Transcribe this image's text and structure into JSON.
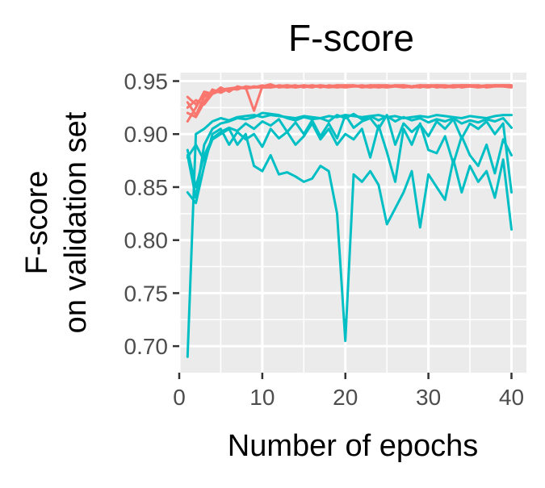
{
  "chart_data": {
    "type": "line",
    "title": "F-score",
    "xlabel": "Number of epochs",
    "ylabel_lines": [
      "F-score",
      "on validation set"
    ],
    "xlim": [
      0,
      41.8
    ],
    "ylim": [
      0.675,
      0.958
    ],
    "xticks": [
      0,
      10,
      20,
      30,
      40
    ],
    "xtick_labels": [
      "0",
      "10",
      "20",
      "30",
      "40"
    ],
    "yticks": [
      0.7,
      0.75,
      0.8,
      0.85,
      0.9,
      0.95
    ],
    "ytick_labels": [
      "0.70",
      "0.75",
      "0.80",
      "0.85",
      "0.90",
      "0.95"
    ],
    "panel_background": "#EBEBEB",
    "grid": true,
    "grid_color": "#FFFFFF",
    "legend": "none",
    "colors": {
      "red_group": "#F8766D",
      "teal_group": "#00BFC4"
    },
    "x": [
      1,
      2,
      3,
      4,
      5,
      6,
      7,
      8,
      9,
      10,
      11,
      12,
      13,
      14,
      15,
      16,
      17,
      18,
      19,
      20,
      21,
      22,
      23,
      24,
      25,
      26,
      27,
      28,
      29,
      30,
      31,
      32,
      33,
      34,
      35,
      36,
      37,
      38,
      39,
      40
    ],
    "series": [
      {
        "group": "red_group",
        "values": [
          0.93,
          0.918,
          0.935,
          0.94,
          0.942,
          0.943,
          0.944,
          0.944,
          0.922,
          0.945,
          0.946,
          0.945,
          0.946,
          0.945,
          0.946,
          0.945,
          0.946,
          0.945,
          0.946,
          0.946,
          0.946,
          0.945,
          0.946,
          0.946,
          0.945,
          0.946,
          0.946,
          0.945,
          0.946,
          0.946,
          0.946,
          0.945,
          0.946,
          0.946,
          0.946,
          0.945,
          0.946,
          0.946,
          0.946,
          0.946
        ]
      },
      {
        "group": "red_group",
        "values": [
          0.925,
          0.932,
          0.928,
          0.938,
          0.941,
          0.942,
          0.943,
          0.944,
          0.944,
          0.944,
          0.945,
          0.945,
          0.944,
          0.945,
          0.945,
          0.946,
          0.945,
          0.945,
          0.946,
          0.945,
          0.945,
          0.946,
          0.945,
          0.946,
          0.946,
          0.945,
          0.946,
          0.945,
          0.946,
          0.945,
          0.946,
          0.946,
          0.945,
          0.946,
          0.946,
          0.946,
          0.945,
          0.946,
          0.946,
          0.946
        ]
      },
      {
        "group": "red_group",
        "values": [
          0.912,
          0.925,
          0.94,
          0.938,
          0.944,
          0.94,
          0.945,
          0.943,
          0.945,
          0.944,
          0.944,
          0.946,
          0.945,
          0.944,
          0.946,
          0.945,
          0.945,
          0.944,
          0.945,
          0.946,
          0.945,
          0.945,
          0.944,
          0.945,
          0.946,
          0.945,
          0.944,
          0.945,
          0.946,
          0.945,
          0.945,
          0.944,
          0.945,
          0.946,
          0.945,
          0.945,
          0.946,
          0.945,
          0.945,
          0.945
        ]
      },
      {
        "group": "red_group",
        "values": [
          0.92,
          0.916,
          0.93,
          0.942,
          0.939,
          0.943,
          0.942,
          0.945,
          0.944,
          0.946,
          0.944,
          0.945,
          0.946,
          0.944,
          0.945,
          0.944,
          0.946,
          0.945,
          0.944,
          0.945,
          0.946,
          0.944,
          0.945,
          0.944,
          0.945,
          0.946,
          0.945,
          0.944,
          0.945,
          0.944,
          0.946,
          0.945,
          0.944,
          0.945,
          0.945,
          0.946,
          0.944,
          0.945,
          0.946,
          0.945
        ]
      },
      {
        "group": "red_group",
        "values": [
          0.935,
          0.928,
          0.937,
          0.939,
          0.943,
          0.941,
          0.944,
          0.943,
          0.944,
          0.945,
          0.947,
          0.944,
          0.945,
          0.946,
          0.944,
          0.946,
          0.944,
          0.946,
          0.945,
          0.944,
          0.945,
          0.945,
          0.946,
          0.945,
          0.944,
          0.945,
          0.946,
          0.945,
          0.944,
          0.946,
          0.944,
          0.945,
          0.946,
          0.944,
          0.945,
          0.944,
          0.945,
          0.946,
          0.945,
          0.944
        ]
      },
      {
        "group": "teal_group",
        "values": [
          0.69,
          0.9,
          0.905,
          0.912,
          0.915,
          0.913,
          0.916,
          0.917,
          0.918,
          0.916,
          0.918,
          0.917,
          0.916,
          0.915,
          0.917,
          0.916,
          0.915,
          0.917,
          0.916,
          0.918,
          0.917,
          0.916,
          0.917,
          0.918,
          0.916,
          0.917,
          0.915,
          0.916,
          0.917,
          0.916,
          0.918,
          0.917,
          0.916,
          0.915,
          0.917,
          0.916,
          0.915,
          0.917,
          0.918,
          0.918
        ]
      },
      {
        "group": "teal_group",
        "values": [
          0.88,
          0.84,
          0.89,
          0.905,
          0.91,
          0.912,
          0.915,
          0.914,
          0.916,
          0.92,
          0.919,
          0.918,
          0.915,
          0.913,
          0.916,
          0.914,
          0.915,
          0.912,
          0.918,
          0.915,
          0.919,
          0.914,
          0.917,
          0.913,
          0.917,
          0.912,
          0.916,
          0.913,
          0.915,
          0.911,
          0.914,
          0.912,
          0.915,
          0.91,
          0.913,
          0.911,
          0.914,
          0.912,
          0.915,
          0.906
        ]
      },
      {
        "group": "teal_group",
        "values": [
          0.885,
          0.85,
          0.88,
          0.896,
          0.902,
          0.906,
          0.903,
          0.91,
          0.905,
          0.912,
          0.908,
          0.914,
          0.902,
          0.911,
          0.9,
          0.913,
          0.898,
          0.91,
          0.896,
          0.918,
          0.906,
          0.912,
          0.915,
          0.905,
          0.918,
          0.89,
          0.91,
          0.902,
          0.909,
          0.898,
          0.912,
          0.905,
          0.914,
          0.896,
          0.91,
          0.905,
          0.912,
          0.9,
          0.91,
          0.845
        ]
      },
      {
        "group": "teal_group",
        "values": [
          0.845,
          0.835,
          0.87,
          0.9,
          0.905,
          0.89,
          0.902,
          0.895,
          0.9,
          0.888,
          0.905,
          0.896,
          0.902,
          0.89,
          0.898,
          0.91,
          0.895,
          0.905,
          0.89,
          0.9,
          0.895,
          0.905,
          0.878,
          0.908,
          0.883,
          0.855,
          0.905,
          0.89,
          0.91,
          0.885,
          0.882,
          0.898,
          0.872,
          0.898,
          0.88,
          0.87,
          0.89,
          0.863,
          0.895,
          0.88
        ]
      },
      {
        "group": "teal_group",
        "values": [
          0.878,
          0.89,
          0.875,
          0.895,
          0.9,
          0.905,
          0.89,
          0.9,
          0.87,
          0.865,
          0.88,
          0.862,
          0.864,
          0.86,
          0.855,
          0.858,
          0.87,
          0.865,
          0.825,
          0.705,
          0.862,
          0.855,
          0.865,
          0.852,
          0.815,
          0.83,
          0.845,
          0.865,
          0.812,
          0.862,
          0.85,
          0.838,
          0.876,
          0.845,
          0.87,
          0.855,
          0.865,
          0.84,
          0.876,
          0.81
        ]
      }
    ]
  }
}
